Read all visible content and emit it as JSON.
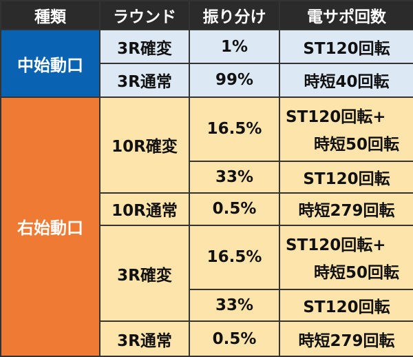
{
  "headers": [
    "種類",
    "ラウンド",
    "振り分け",
    "電サポ回数"
  ],
  "sections": [
    {
      "name": "中始動口",
      "color": "#0a62b3",
      "rows": [
        {
          "round": "3R確変",
          "split": "1%",
          "support": "ST120回転"
        },
        {
          "round": "3R通常",
          "split": "99%",
          "support": "時短40回転"
        }
      ]
    },
    {
      "name": "右始動口",
      "color": "#ee7a33",
      "rows": [
        {
          "round": "10R確変",
          "split": "16.5%",
          "support_l1": "ST120回転+",
          "support_l2": "時短50回転"
        },
        {
          "split": "33%",
          "support": "ST120回転"
        },
        {
          "round": "10R通常",
          "split": "0.5%",
          "support": "時短279回転"
        },
        {
          "round": "3R確変",
          "split": "16.5%",
          "support_l1": "ST120回転+",
          "support_l2": "時短50回転"
        },
        {
          "split": "33%",
          "support": "ST120回転"
        },
        {
          "round": "3R通常",
          "split": "0.5%",
          "support": "時短279回転"
        }
      ]
    }
  ]
}
